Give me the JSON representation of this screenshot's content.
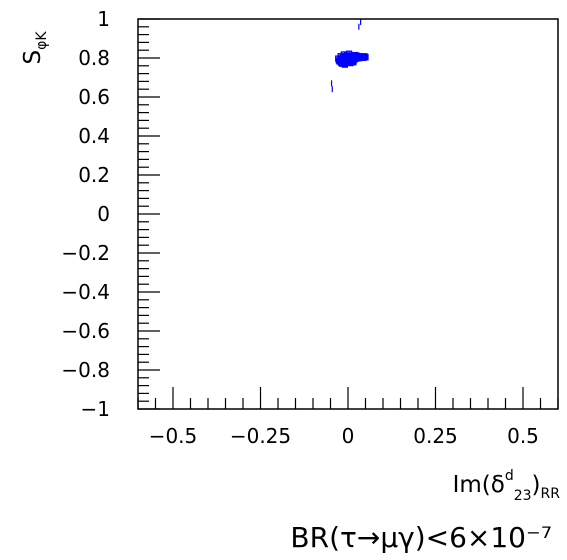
{
  "chart_data": {
    "type": "scatter",
    "title": "",
    "xlim": [
      -0.6,
      0.6
    ],
    "ylim": [
      -1,
      1
    ],
    "xticks": [
      -0.5,
      -0.25,
      0,
      0.25,
      0.5
    ],
    "xtick_labels": [
      "−0.5",
      "−0.25",
      "0",
      "0.25",
      "0.5"
    ],
    "yticks": [
      -1,
      -0.8,
      -0.6,
      -0.4,
      -0.2,
      0,
      0.2,
      0.4,
      0.6,
      0.8,
      1
    ],
    "ytick_labels": [
      "−1",
      "−0.8",
      "−0.6",
      "−0.4",
      "−0.2",
      "0",
      "0.2",
      "0.4",
      "0.6",
      "0.8",
      "1"
    ],
    "grid": false,
    "legend": "none",
    "xlabel": {
      "main": "Im(δ",
      "sup": "d",
      "sub": "23",
      "close": ")",
      "sub2": "RR"
    },
    "ylabel": {
      "main": "S",
      "sub": "φK"
    },
    "caption": "BR(τ→μγ)<6×10⁻⁷",
    "marker_color": "#0000ff",
    "points": [
      [
        -0.026,
        0.787
      ],
      [
        -0.024,
        0.782
      ],
      [
        -0.022,
        0.792
      ],
      [
        -0.02,
        0.776
      ],
      [
        -0.018,
        0.798
      ],
      [
        -0.016,
        0.786
      ],
      [
        -0.015,
        0.805
      ],
      [
        -0.013,
        0.779
      ],
      [
        -0.012,
        0.818
      ],
      [
        -0.011,
        0.793
      ],
      [
        -0.01,
        0.771
      ],
      [
        -0.008,
        0.801
      ],
      [
        -0.007,
        0.788
      ],
      [
        -0.006,
        0.809
      ],
      [
        -0.005,
        0.781
      ],
      [
        -0.004,
        0.795
      ],
      [
        -0.003,
        0.814
      ],
      [
        -0.002,
        0.776
      ],
      [
        -0.001,
        0.79
      ],
      [
        0.0,
        0.803
      ],
      [
        0.001,
        0.785
      ],
      [
        0.002,
        0.797
      ],
      [
        0.003,
        0.808
      ],
      [
        0.004,
        0.779
      ],
      [
        0.005,
        0.792
      ],
      [
        0.006,
        0.801
      ],
      [
        0.007,
        0.786
      ],
      [
        0.008,
        0.811
      ],
      [
        0.009,
        0.795
      ],
      [
        0.01,
        0.782
      ],
      [
        0.011,
        0.799
      ],
      [
        0.012,
        0.806
      ],
      [
        0.013,
        0.79
      ],
      [
        0.014,
        0.813
      ],
      [
        0.015,
        0.797
      ],
      [
        0.016,
        0.785
      ],
      [
        0.017,
        0.802
      ],
      [
        0.018,
        0.808
      ],
      [
        0.019,
        0.793
      ],
      [
        0.02,
        0.799
      ],
      [
        0.022,
        0.805
      ],
      [
        0.024,
        0.797
      ],
      [
        0.026,
        0.811
      ],
      [
        0.028,
        0.802
      ],
      [
        0.03,
        0.807
      ],
      [
        0.032,
        0.799
      ],
      [
        0.035,
        0.809
      ],
      [
        0.038,
        0.803
      ],
      [
        0.041,
        0.806
      ],
      [
        0.044,
        0.801
      ],
      [
        0.047,
        0.809
      ],
      [
        0.05,
        0.804
      ],
      [
        -0.028,
        0.797
      ],
      [
        -0.021,
        0.809
      ],
      [
        -0.009,
        0.766
      ],
      [
        0.003,
        0.822
      ],
      [
        0.015,
        0.778
      ],
      [
        -0.017,
        0.771
      ],
      [
        0.007,
        0.774
      ],
      [
        0.021,
        0.815
      ]
    ],
    "outliers": [
      [
        0.031,
        0.96
      ],
      [
        0.036,
        0.985
      ],
      [
        -0.047,
        0.67
      ],
      [
        -0.045,
        0.64
      ]
    ]
  }
}
